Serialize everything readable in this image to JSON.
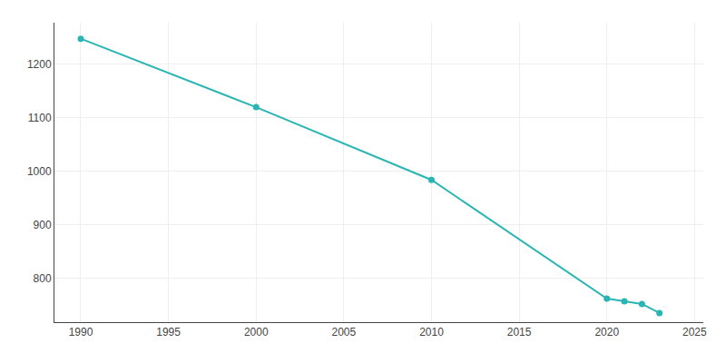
{
  "chart_data": {
    "type": "line",
    "x": [
      1990,
      2000,
      2010,
      2020,
      2021,
      2022,
      2023
    ],
    "values": [
      1248,
      1120,
      984,
      762,
      757,
      752,
      735
    ],
    "color": "#2ab5b5",
    "marker": "circle",
    "line_style": "solid",
    "xlim": [
      1988.5,
      2025.5
    ],
    "ylim": [
      718,
      1278
    ],
    "xticks": [
      1990,
      1995,
      2000,
      2005,
      2010,
      2015,
      2020,
      2025
    ],
    "yticks": [
      800,
      900,
      1000,
      1100,
      1200
    ],
    "grid": true
  }
}
